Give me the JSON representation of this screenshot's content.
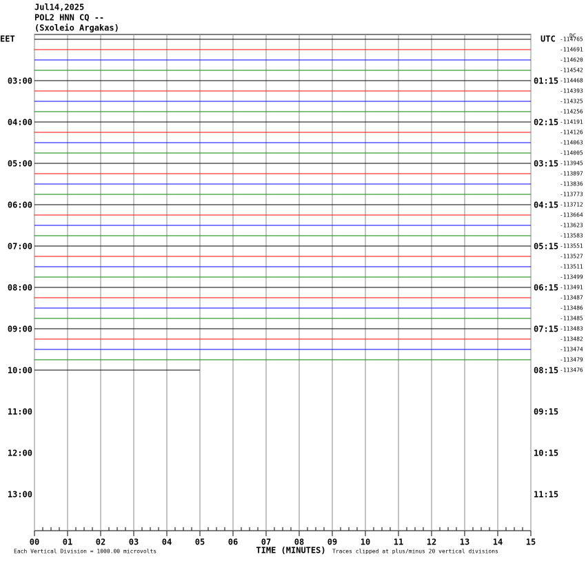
{
  "chart_data": {
    "type": "helicorder",
    "title_lines": [
      "Jul14,2025",
      "POL2 HNN CQ --",
      "(Sxoleio Argakas)"
    ],
    "left_zone": "EET",
    "right_zone": "UTC",
    "dc_label": "DC",
    "eet_labels": [
      "03:00",
      "04:00",
      "05:00",
      "06:00",
      "07:00",
      "08:00",
      "09:00",
      "10:00",
      "11:00",
      "12:00",
      "13:00"
    ],
    "utc_labels": [
      "01:15",
      "02:15",
      "03:15",
      "04:15",
      "05:15",
      "06:15",
      "07:15",
      "08:15",
      "09:15",
      "10:15",
      "11:15"
    ],
    "xlabel": "TIME (MINUTES)",
    "scale_note": "Each Vertical Division = 1000.00 microvolts",
    "clip_note": "Traces clipped at plus/minus 20 vertical divisions",
    "xlim": [
      0,
      15
    ],
    "xticks": [
      {
        "value": 0,
        "label": "00"
      },
      {
        "value": 1,
        "label": "01"
      },
      {
        "value": 2,
        "label": "02"
      },
      {
        "value": 3,
        "label": "03"
      },
      {
        "value": 4,
        "label": "04"
      },
      {
        "value": 5,
        "label": "05"
      },
      {
        "value": 6,
        "label": "06"
      },
      {
        "value": 7,
        "label": "07"
      },
      {
        "value": 8,
        "label": "08"
      },
      {
        "value": 9,
        "label": "09"
      },
      10,
      11,
      12,
      13,
      14,
      15
    ],
    "colors": [
      "#000000",
      "#ff0000",
      "#0000ff",
      "#008000"
    ],
    "offsets": [
      -114765,
      -114691,
      -114620,
      -114542,
      -114468,
      -114393,
      -114325,
      -114256,
      -114191,
      -114126,
      -114063,
      -114005,
      -113945,
      -113897,
      -113836,
      -113773,
      -113712,
      -113664,
      -113623,
      -113583,
      -113551,
      -113527,
      -113511,
      -113499,
      -113491,
      -113487,
      -113486,
      -113485,
      -113483,
      -113482,
      -113474,
      -113479,
      -113476
    ],
    "trace_ends": [
      15,
      15,
      15,
      15,
      15,
      15,
      15,
      15,
      15,
      15,
      15,
      15,
      15,
      15,
      15,
      15,
      15,
      15,
      15,
      15,
      15,
      15,
      15,
      15,
      15,
      15,
      15,
      15,
      15,
      15,
      15,
      15,
      5
    ]
  }
}
